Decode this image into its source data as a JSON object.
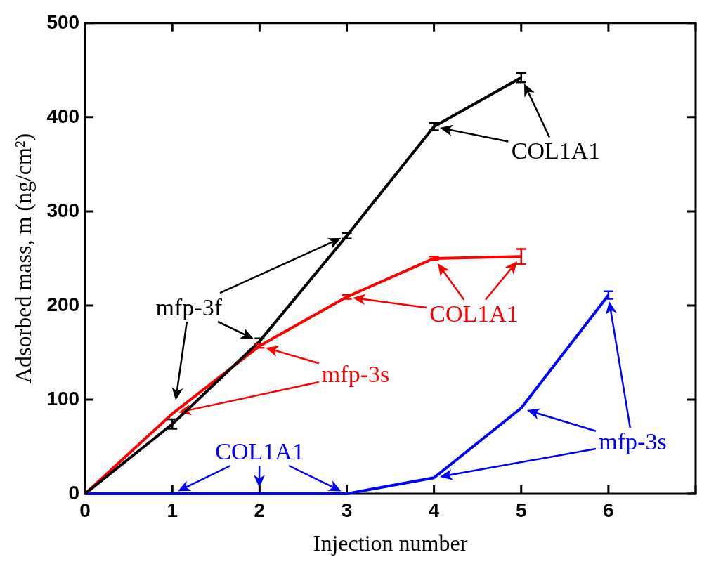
{
  "chart_data": {
    "type": "line",
    "xlabel": "Injection number",
    "ylabel": "Adsorbed mass, m (ng/cm²)",
    "x": [
      0,
      1,
      2,
      3,
      4,
      5,
      6
    ],
    "series": [
      {
        "color": "#000000",
        "values": [
          0,
          74,
          162,
          274,
          390,
          442,
          null
        ],
        "errors": [
          null,
          5,
          3,
          3,
          4,
          5,
          null
        ]
      },
      {
        "color": "#ff0000",
        "values": [
          0,
          85,
          157,
          209,
          250,
          252,
          null
        ],
        "errors": [
          null,
          null,
          2,
          2,
          2,
          8,
          null
        ]
      },
      {
        "color": "#0000ff",
        "values": [
          0,
          0,
          0,
          0,
          17,
          91,
          211
        ],
        "errors": [
          null,
          null,
          null,
          null,
          null,
          null,
          4
        ]
      }
    ],
    "annotations": [
      {
        "text": "COL1A1",
        "x": 5,
        "y": 442
      },
      {
        "text": "mfp-3f",
        "x": 2,
        "y": 162
      },
      {
        "text": "COL1A1",
        "x": 4,
        "y": 250
      },
      {
        "text": "mfp-3s",
        "x": 2,
        "y": 157
      },
      {
        "text": "COL1A1",
        "x": 2,
        "y": 0
      },
      "mfp-3s"
    ],
    "xlim": [
      0,
      7
    ],
    "xticks": [
      0,
      1,
      2,
      3,
      4,
      5,
      6,
      {
        "value": 7,
        "label": null
      }
    ],
    "ylim": [
      0,
      500
    ],
    "yticks": [
      0,
      100,
      200,
      300,
      400,
      500
    ],
    "grid": false,
    "legend": false,
    "line_style": "solid"
  }
}
